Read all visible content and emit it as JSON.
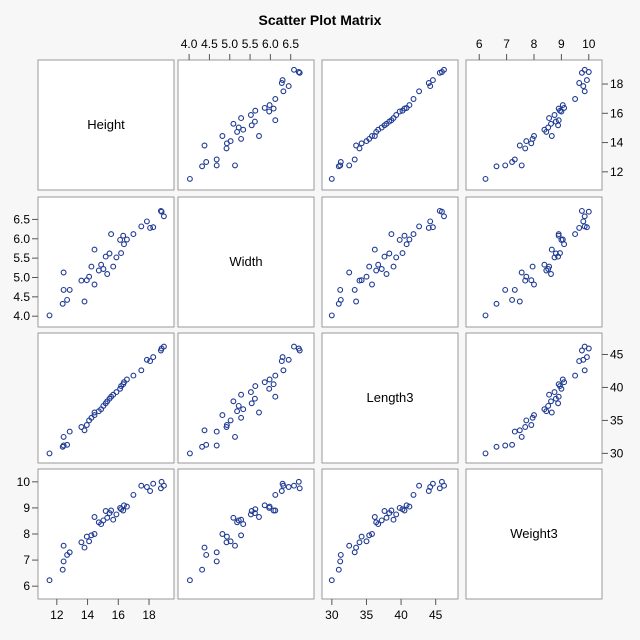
{
  "chart_data": {
    "type": "scatter",
    "title": "Scatter Plot Matrix",
    "variables": [
      "Height",
      "Width",
      "Length3",
      "Weight3"
    ],
    "ranges": {
      "Height": [
        11.1,
        19.3
      ],
      "Width": [
        3.85,
        6.95
      ],
      "Length3": [
        29.3,
        47.5
      ],
      "Weight3": [
        5.7,
        10.3
      ]
    },
    "ticks": {
      "Height": {
        "values": [
          12,
          14,
          16,
          18
        ],
        "labels": [
          "12",
          "14",
          "16",
          "18"
        ]
      },
      "Width": {
        "values": [
          4.0,
          4.5,
          5.0,
          5.5,
          6.0,
          6.5
        ],
        "labels": [
          "4.0",
          "4.5",
          "5.0",
          "5.5",
          "6.0",
          "6.5"
        ]
      },
      "Length3": {
        "values": [
          30,
          35,
          40,
          45
        ],
        "labels": [
          "30",
          "35",
          "40",
          "45"
        ]
      },
      "Weight3": {
        "values": [
          6,
          7,
          8,
          9,
          10
        ],
        "labels": [
          "6",
          "7",
          "8",
          "9",
          "10"
        ]
      }
    },
    "top_axis_vars": [
      null,
      "Width",
      null,
      "Weight3"
    ],
    "right_axis_vars": [
      "Height",
      null,
      "Length3",
      null
    ],
    "left_axis_vars": [
      null,
      "Width",
      null,
      "Weight3"
    ],
    "bottom_axis_vars": [
      "Height",
      null,
      "Length3",
      null
    ],
    "grid": false,
    "points": [
      {
        "Height": 11.52,
        "Width": 4.02,
        "Length3": 30.0,
        "Weight3": 6.23
      },
      {
        "Height": 12.38,
        "Width": 4.32,
        "Length3": 31.0,
        "Weight3": 6.63
      },
      {
        "Height": 12.44,
        "Width": 4.68,
        "Length3": 31.2,
        "Weight3": 6.95
      },
      {
        "Height": 12.67,
        "Width": 4.42,
        "Length3": 31.3,
        "Weight3": 7.2
      },
      {
        "Height": 12.44,
        "Width": 5.13,
        "Length3": 32.5,
        "Weight3": 7.55
      },
      {
        "Height": 12.84,
        "Width": 4.68,
        "Length3": 33.3,
        "Weight3": 7.3
      },
      {
        "Height": 13.6,
        "Width": 4.92,
        "Length3": 34.0,
        "Weight3": 7.68
      },
      {
        "Height": 13.8,
        "Width": 4.38,
        "Length3": 33.5,
        "Weight3": 7.48
      },
      {
        "Height": 13.95,
        "Width": 4.93,
        "Length3": 34.3,
        "Weight3": 7.9
      },
      {
        "Height": 14.1,
        "Width": 5.02,
        "Length3": 35.0,
        "Weight3": 7.72
      },
      {
        "Height": 14.25,
        "Width": 5.28,
        "Length3": 35.4,
        "Weight3": 7.95
      },
      {
        "Height": 14.45,
        "Width": 4.82,
        "Length3": 35.8,
        "Weight3": 8.0
      },
      {
        "Height": 14.45,
        "Width": 5.72,
        "Length3": 36.2,
        "Weight3": 8.65
      },
      {
        "Height": 14.73,
        "Width": 5.18,
        "Length3": 36.4,
        "Weight3": 8.45
      },
      {
        "Height": 14.88,
        "Width": 5.33,
        "Length3": 36.7,
        "Weight3": 8.38
      },
      {
        "Height": 15.03,
        "Width": 5.22,
        "Length3": 37.2,
        "Weight3": 8.52
      },
      {
        "Height": 15.18,
        "Width": 5.54,
        "Length3": 37.6,
        "Weight3": 8.88
      },
      {
        "Height": 15.28,
        "Width": 5.09,
        "Length3": 37.9,
        "Weight3": 8.62
      },
      {
        "Height": 15.43,
        "Width": 5.62,
        "Length3": 38.3,
        "Weight3": 8.8
      },
      {
        "Height": 15.53,
        "Width": 6.12,
        "Length3": 38.6,
        "Weight3": 8.9
      },
      {
        "Height": 15.67,
        "Width": 5.28,
        "Length3": 38.9,
        "Weight3": 8.55
      },
      {
        "Height": 15.88,
        "Width": 5.52,
        "Length3": 39.3,
        "Weight3": 8.75
      },
      {
        "Height": 16.12,
        "Width": 5.97,
        "Length3": 39.8,
        "Weight3": 9.0
      },
      {
        "Height": 16.18,
        "Width": 5.63,
        "Length3": 40.2,
        "Weight3": 8.95
      },
      {
        "Height": 16.32,
        "Width": 6.08,
        "Length3": 40.5,
        "Weight3": 8.9
      },
      {
        "Height": 16.37,
        "Width": 5.86,
        "Length3": 40.8,
        "Weight3": 9.1
      },
      {
        "Height": 16.56,
        "Width": 5.98,
        "Length3": 41.2,
        "Weight3": 9.05
      },
      {
        "Height": 16.98,
        "Width": 6.12,
        "Length3": 41.8,
        "Weight3": 9.5
      },
      {
        "Height": 17.5,
        "Width": 6.32,
        "Length3": 42.6,
        "Weight3": 9.85
      },
      {
        "Height": 17.86,
        "Width": 6.45,
        "Length3": 44.2,
        "Weight3": 9.8
      },
      {
        "Height": 18.07,
        "Width": 6.28,
        "Length3": 44.0,
        "Weight3": 9.65
      },
      {
        "Height": 18.27,
        "Width": 6.3,
        "Length3": 44.6,
        "Weight3": 9.93
      },
      {
        "Height": 18.77,
        "Width": 6.72,
        "Length3": 45.6,
        "Weight3": 9.75
      },
      {
        "Height": 18.82,
        "Width": 6.7,
        "Length3": 45.9,
        "Weight3": 10.0
      },
      {
        "Height": 18.97,
        "Width": 6.58,
        "Length3": 46.2,
        "Weight3": 9.85
      }
    ]
  }
}
